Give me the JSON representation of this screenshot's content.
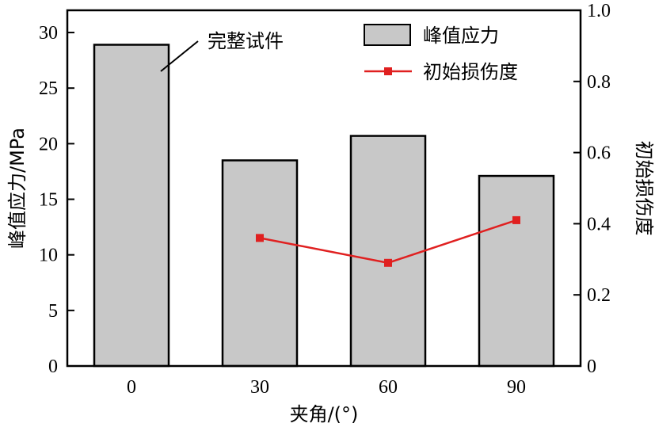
{
  "chart_data": {
    "type": "bar",
    "categories": [
      "0",
      "30",
      "60",
      "90"
    ],
    "xlabel": "夹角/(°)",
    "ylabel": "峰值应力/MPa",
    "y2label": "初始损伤度",
    "ylim": [
      0,
      32
    ],
    "y2lim": [
      0,
      1.0
    ],
    "yticks": [
      0,
      5,
      10,
      15,
      20,
      25,
      30
    ],
    "y2ticks": [
      "0",
      "0.2",
      "0.4",
      "0.6",
      "0.8",
      "1.0"
    ],
    "grid": false,
    "legend_position": "top-right",
    "series": [
      {
        "name": "峰值应力",
        "type": "bar",
        "axis": "left",
        "values": [
          28.9,
          18.5,
          20.7,
          17.1
        ],
        "color": "#c8c8c8"
      },
      {
        "name": "初始损伤度",
        "type": "line",
        "axis": "right",
        "values": [
          null,
          0.36,
          0.29,
          0.41
        ],
        "color": "#e02020"
      }
    ],
    "annotations": [
      {
        "text": "完整试件",
        "target_category": "0"
      }
    ]
  }
}
